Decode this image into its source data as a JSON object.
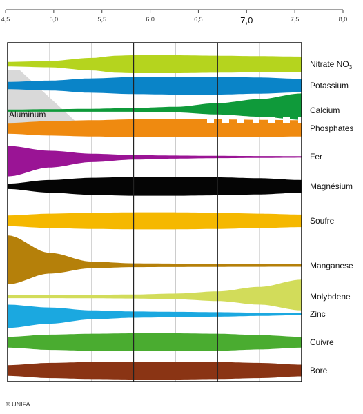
{
  "chart_data": {
    "type": "area",
    "xlim": [
      4.5,
      8.0
    ],
    "x_ticks": [
      "4,5",
      "5,0",
      "5,5",
      "6,0",
      "6,5",
      "7,0",
      "7,5",
      "8,0"
    ],
    "x_tick_values": [
      4.5,
      5.0,
      5.5,
      6.0,
      6.5,
      7.0,
      7.5,
      8.0
    ],
    "major_tick": "7,0",
    "plot_xlim": [
      4.5,
      8.0
    ],
    "series": [
      {
        "name": "Nitrate NO",
        "subscript": "3",
        "color": "#b5d41e",
        "x": [
          4.5,
          5.0,
          5.5,
          5.8,
          6.0,
          6.5,
          7.0,
          7.5,
          8.0
        ],
        "thickness": [
          0.25,
          0.35,
          0.7,
          0.95,
          1.0,
          1.0,
          0.95,
          0.9,
          0.85
        ]
      },
      {
        "name": "Potassium",
        "color": "#0a84c8",
        "x": [
          4.5,
          5.0,
          5.5,
          6.0,
          6.5,
          7.0,
          7.5,
          8.0
        ],
        "thickness": [
          0.4,
          0.55,
          0.8,
          0.95,
          1.0,
          1.0,
          0.9,
          0.75
        ]
      },
      {
        "name": "Calcium",
        "color": "#0f9a3a",
        "x": [
          4.5,
          5.0,
          5.5,
          6.0,
          6.5,
          7.0,
          7.5,
          8.0
        ],
        "thickness": [
          0.1,
          0.15,
          0.2,
          0.3,
          0.45,
          0.9,
          1.4,
          2.1
        ]
      },
      {
        "name": "Phosphates",
        "color": "#ef8a10",
        "x": [
          4.5,
          5.0,
          5.5,
          6.0,
          6.5,
          7.0,
          7.5,
          8.0
        ],
        "thickness": [
          0.6,
          0.8,
          0.9,
          1.0,
          1.0,
          1.0,
          0.95,
          0.9
        ]
      },
      {
        "name": "Fer",
        "color": "#9a1495",
        "x": [
          4.5,
          5.0,
          5.5,
          6.0,
          6.5,
          7.0,
          7.5,
          8.0
        ],
        "thickness": [
          2.0,
          1.1,
          0.55,
          0.3,
          0.2,
          0.15,
          0.12,
          0.1
        ]
      },
      {
        "name": "Magnésium",
        "color": "#050505",
        "x": [
          4.5,
          5.0,
          5.5,
          6.0,
          6.5,
          7.0,
          7.5,
          8.0
        ],
        "thickness": [
          0.3,
          0.7,
          0.95,
          1.05,
          1.05,
          1.0,
          0.9,
          0.7
        ]
      },
      {
        "name": "Soufre",
        "color": "#f5b800",
        "x": [
          4.5,
          5.0,
          5.5,
          6.0,
          6.5,
          7.0,
          7.5,
          8.0
        ],
        "thickness": [
          0.6,
          0.8,
          0.9,
          0.95,
          0.95,
          0.9,
          0.8,
          0.7
        ]
      },
      {
        "name": "Manganese",
        "color": "#b5800a",
        "x": [
          4.5,
          5.0,
          5.5,
          6.0,
          6.5,
          7.0,
          7.5,
          8.0
        ],
        "thickness": [
          2.6,
          1.1,
          0.35,
          0.2,
          0.18,
          0.16,
          0.15,
          0.14
        ]
      },
      {
        "name": "Molybdene",
        "color": "#d2dc5a",
        "x": [
          4.5,
          5.0,
          5.5,
          6.0,
          6.5,
          7.0,
          7.5,
          8.0
        ],
        "thickness": [
          0.2,
          0.2,
          0.22,
          0.25,
          0.35,
          0.6,
          1.1,
          1.9
        ]
      },
      {
        "name": "Zinc",
        "color": "#1ba8e0",
        "x": [
          4.5,
          5.0,
          5.5,
          6.0,
          6.5,
          7.0,
          7.5,
          8.0
        ],
        "thickness": [
          1.3,
          0.9,
          0.5,
          0.35,
          0.3,
          0.25,
          0.18,
          0.1
        ]
      },
      {
        "name": "Cuivre",
        "color": "#4aac30",
        "x": [
          4.5,
          5.0,
          5.5,
          6.0,
          6.5,
          7.0,
          7.5,
          8.0
        ],
        "thickness": [
          0.6,
          0.85,
          0.95,
          1.0,
          1.0,
          0.95,
          0.8,
          0.6
        ]
      },
      {
        "name": "Bore",
        "color": "#8a3414",
        "x": [
          4.5,
          5.0,
          5.5,
          6.0,
          6.5,
          7.0,
          7.5,
          8.0
        ],
        "thickness": [
          0.6,
          0.85,
          0.95,
          1.0,
          1.0,
          0.95,
          0.85,
          0.65
        ]
      }
    ],
    "aluminum": {
      "name": "Aluminum",
      "color": "#d9d9d9",
      "x_end": 5.4
    },
    "grid": {
      "major_x": [
        6.0,
        7.0
      ],
      "minor_x": [
        5.0,
        5.5,
        6.5,
        7.5
      ]
    }
  },
  "credit": "© UNIFA"
}
